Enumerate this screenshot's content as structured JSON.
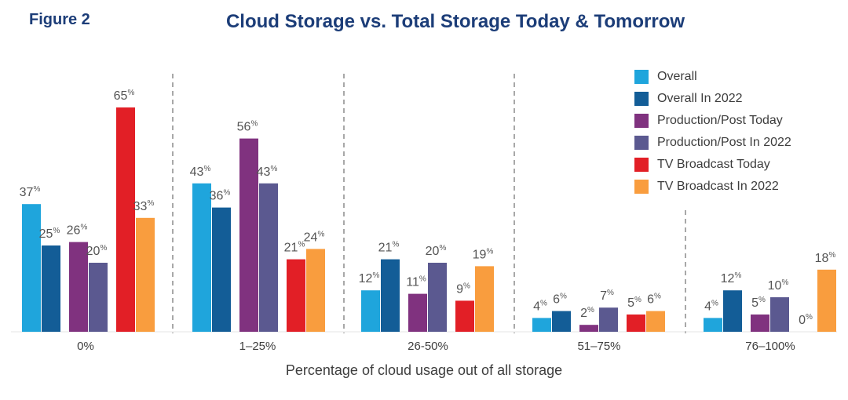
{
  "figure_label": "Figure 2",
  "colors": {
    "title": "#1c3d78",
    "text": "#3d3d3d",
    "divider": "#a8a8a8"
  },
  "chart_data": {
    "type": "bar",
    "title": "Cloud Storage vs. Total Storage Today & Tomorrow",
    "xlabel": "Percentage of cloud usage out of all storage",
    "ylabel": "",
    "ylim": [
      0,
      70
    ],
    "categories": [
      "0%",
      "1–25%",
      "26-50%",
      "51–75%",
      "76–100%"
    ],
    "value_suffix": "%",
    "series": [
      {
        "name": "Overall",
        "color": "#1fa5dc",
        "values": [
          37,
          43,
          12,
          4,
          4
        ]
      },
      {
        "name": "Overall In 2022",
        "color": "#135d97",
        "values": [
          25,
          36,
          21,
          6,
          12
        ]
      },
      {
        "name": "Production/Post Today",
        "color": "#80327f",
        "values": [
          26,
          56,
          11,
          2,
          5
        ]
      },
      {
        "name": "Production/Post In 2022",
        "color": "#5b5990",
        "values": [
          20,
          43,
          20,
          7,
          10
        ]
      },
      {
        "name": "TV Broadcast Today",
        "color": "#e21f26",
        "values": [
          65,
          21,
          9,
          5,
          0
        ]
      },
      {
        "name": "TV Broadcast In 2022",
        "color": "#f99d3e",
        "values": [
          33,
          24,
          19,
          6,
          18
        ]
      }
    ],
    "legend_position": "top-right",
    "grid": false
  }
}
